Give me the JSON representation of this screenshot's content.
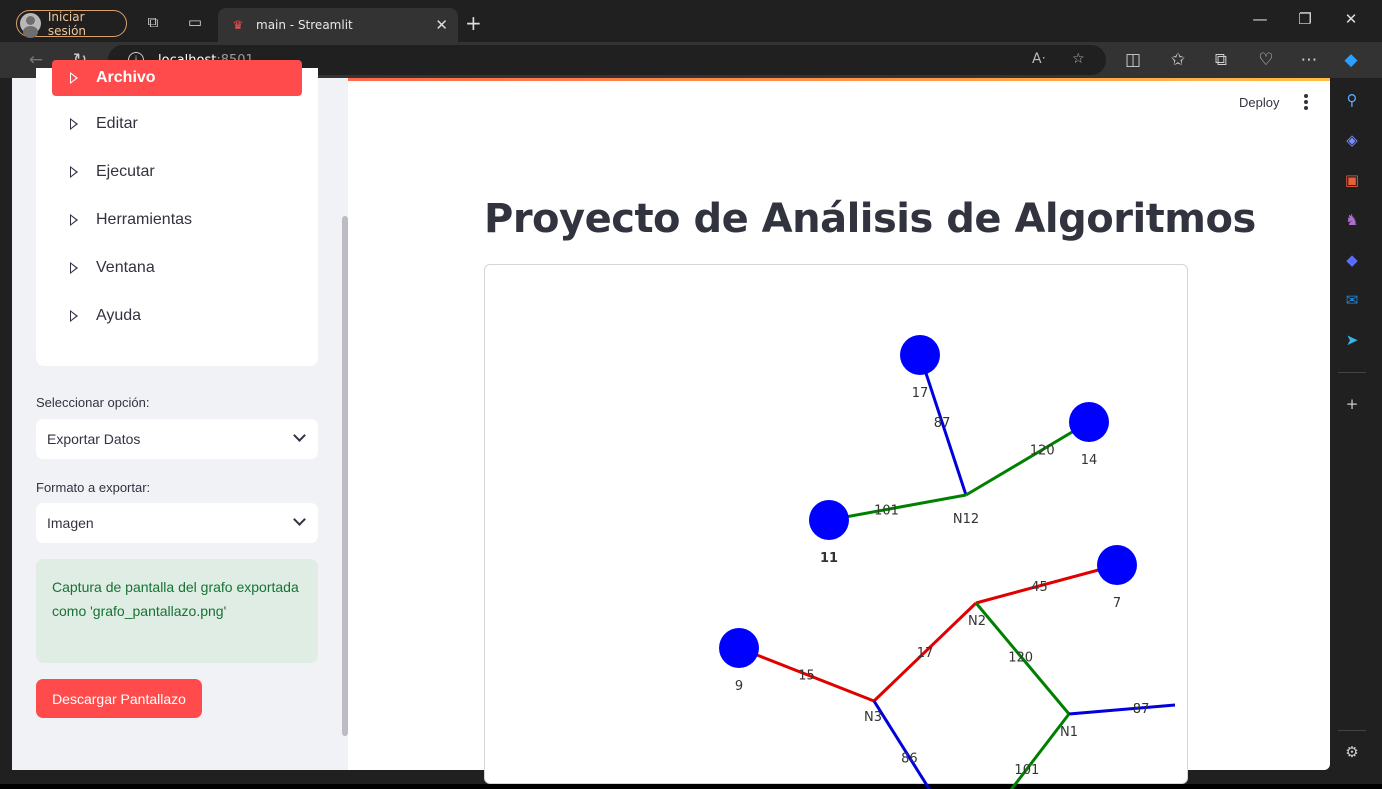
{
  "browser": {
    "profile_label": "Iniciar sesión",
    "tab_title": "main - Streamlit",
    "url_host": "localhost",
    "url_port": ":8501"
  },
  "header": {
    "deploy_label": "Deploy"
  },
  "sidebar": {
    "menu_items": [
      {
        "label": "Archivo",
        "active": true
      },
      {
        "label": "Editar",
        "active": false
      },
      {
        "label": "Ejecutar",
        "active": false
      },
      {
        "label": "Herramientas",
        "active": false
      },
      {
        "label": "Ventana",
        "active": false
      },
      {
        "label": "Ayuda",
        "active": false
      }
    ],
    "option_label": "Seleccionar opción:",
    "option_value": "Exportar Datos",
    "format_label": "Formato a exportar:",
    "format_value": "Imagen",
    "success_message": "Captura de pantalla del grafo exportada como 'grafo_pantallazo.png'",
    "download_label": "Descargar Pantallazo"
  },
  "main": {
    "title": "Proyecto de Análisis de Algoritmos"
  },
  "graph": {
    "nodes": [
      {
        "id": "17",
        "label": "17",
        "bold": false
      },
      {
        "id": "14",
        "label": "14",
        "bold": false
      },
      {
        "id": "N12",
        "label": "N12",
        "bold": false
      },
      {
        "id": "11",
        "label": "11",
        "bold": true
      },
      {
        "id": "7",
        "label": "7",
        "bold": false
      },
      {
        "id": "N2",
        "label": "N2",
        "bold": false
      },
      {
        "id": "9",
        "label": "9",
        "bold": false
      },
      {
        "id": "N3",
        "label": "N3",
        "bold": false
      },
      {
        "id": "N1",
        "label": "N1",
        "bold": false
      }
    ],
    "edges": [
      {
        "from": "17",
        "to": "N12",
        "weight": "87",
        "color": "#0000dd"
      },
      {
        "from": "14",
        "to": "N12",
        "weight": "120",
        "color": "#008000"
      },
      {
        "from": "11",
        "to": "N12",
        "weight": "101",
        "color": "#008000"
      },
      {
        "from": "7",
        "to": "N2",
        "weight": "45",
        "color": "#e00000"
      },
      {
        "from": "N3",
        "to": "N2",
        "weight": "17",
        "color": "#e00000"
      },
      {
        "from": "9",
        "to": "N3",
        "weight": "15",
        "color": "#e00000"
      },
      {
        "from": "N2",
        "to": "N1",
        "weight": "120",
        "color": "#008000"
      },
      {
        "from": "N1",
        "to": "offscreen-right",
        "weight": "87",
        "color": "#0000dd"
      },
      {
        "from": "N3",
        "to": "offscreen-bottom",
        "weight": "86",
        "color": "#0000dd"
      },
      {
        "from": "N1",
        "to": "offscreen-bottom-2",
        "weight": "101",
        "color": "#008000"
      }
    ],
    "node_color": "#0000ff"
  }
}
